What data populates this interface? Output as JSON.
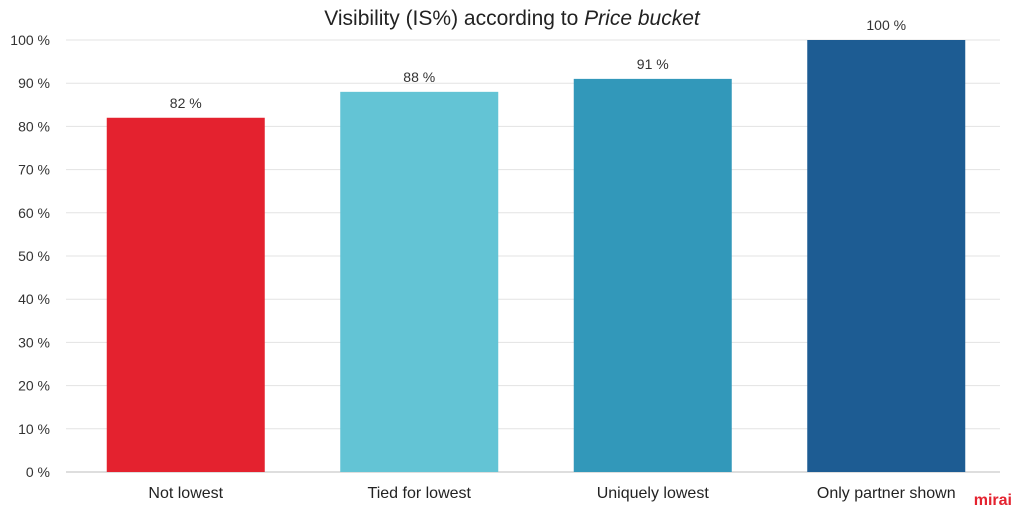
{
  "chart_data": {
    "type": "bar",
    "title": "Visibility (IS%) according to",
    "title_emphasis": "Price bucket",
    "xlabel": "",
    "ylabel": "",
    "categories": [
      "Not lowest",
      "Tied for lowest",
      "Uniquely lowest",
      "Only partner shown"
    ],
    "values": [
      82,
      88,
      91,
      100
    ],
    "data_labels": [
      "82 %",
      "88 %",
      "91 %",
      "100 %"
    ],
    "colors": [
      "#e4222f",
      "#63c4d5",
      "#3298ba",
      "#1d5c93"
    ],
    "ylim": [
      0,
      100
    ],
    "yticks": [
      0,
      10,
      20,
      30,
      40,
      50,
      60,
      70,
      80,
      90,
      100
    ],
    "ytick_labels": [
      "0 %",
      "10 %",
      "20 %",
      "30 %",
      "40 %",
      "50 %",
      "60 %",
      "70 %",
      "80 %",
      "90 %",
      "100 %"
    ],
    "grid": true,
    "legend": "none"
  },
  "brand": {
    "logo_text": "mirai",
    "color": "#e4222f"
  }
}
